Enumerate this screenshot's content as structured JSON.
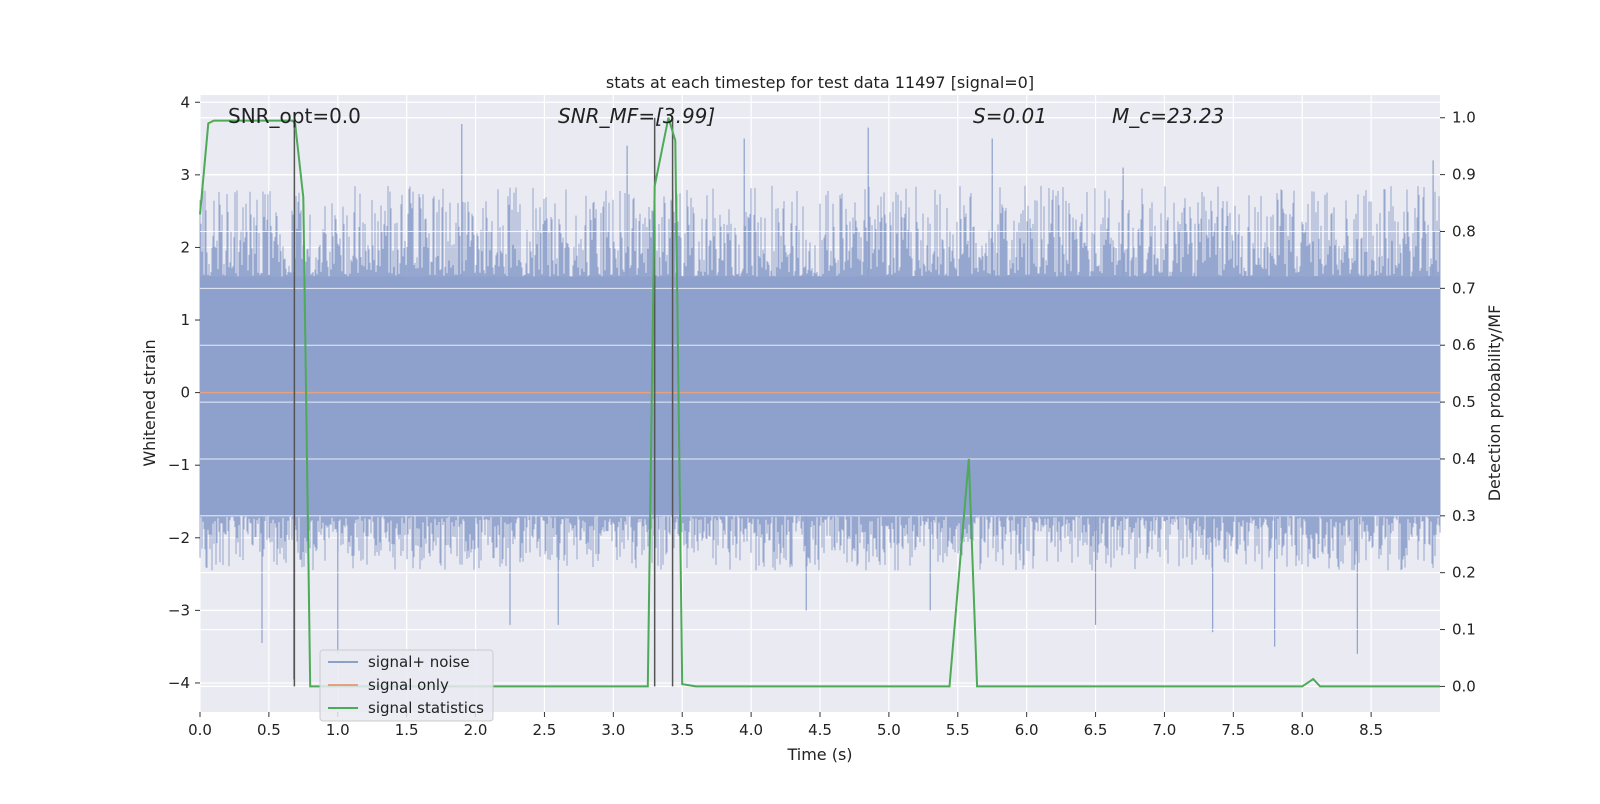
{
  "chart_data": {
    "type": "line",
    "title": "stats at each timestep for test data 11497 [signal=0]",
    "xlabel": "Time (s)",
    "ylabel": "Whitened strain",
    "y2label": "Detection probability/MF",
    "xlim": [
      0.0,
      9.0
    ],
    "ylim": [
      -4.4,
      4.1
    ],
    "y2lim": [
      -0.045,
      1.04
    ],
    "xticks": [
      "0.0",
      "0.5",
      "1.0",
      "1.5",
      "2.0",
      "2.5",
      "3.0",
      "3.5",
      "4.0",
      "4.5",
      "5.0",
      "5.5",
      "6.0",
      "6.5",
      "7.0",
      "7.5",
      "8.0",
      "8.5"
    ],
    "xtick_values": [
      0.0,
      0.5,
      1.0,
      1.5,
      2.0,
      2.5,
      3.0,
      3.5,
      4.0,
      4.5,
      5.0,
      5.5,
      6.0,
      6.5,
      7.0,
      7.5,
      8.0,
      8.5
    ],
    "yticks": [
      "4",
      "3",
      "2",
      "1",
      "0",
      "−1",
      "−2",
      "−3",
      "−4"
    ],
    "ytick_values": [
      4,
      3,
      2,
      1,
      0,
      -1,
      -2,
      -3,
      -4
    ],
    "y2ticks": [
      "1.0",
      "0.9",
      "0.8",
      "0.7",
      "0.6",
      "0.5",
      "0.4",
      "0.3",
      "0.2",
      "0.1",
      "0.0"
    ],
    "y2tick_values": [
      1.0,
      0.9,
      0.8,
      0.7,
      0.6,
      0.5,
      0.4,
      0.3,
      0.2,
      0.1,
      0.0
    ],
    "grid": true,
    "legend_position": "lower-left",
    "annotations": [
      {
        "text": "SNR_opt=0.0"
      },
      {
        "text": "SNR_MF=[3.99]"
      },
      {
        "text": "S=0.01"
      },
      {
        "text": "M_c=23.23"
      }
    ],
    "series": [
      {
        "name": "signal+ noise",
        "color": "#8da0cb",
        "kind": "noise",
        "x_range": [
          0.0,
          9.0
        ],
        "core_band": [
          -1.7,
          1.6
        ],
        "envelope_typical": [
          -2.3,
          2.6
        ],
        "spikes": [
          {
            "x": 0.45,
            "y": -3.45
          },
          {
            "x": 0.68,
            "y": -3.95
          },
          {
            "x": 1.0,
            "y": -3.6
          },
          {
            "x": 1.9,
            "y": 3.7
          },
          {
            "x": 2.25,
            "y": -3.2
          },
          {
            "x": 2.6,
            "y": -3.2
          },
          {
            "x": 3.95,
            "y": 3.5
          },
          {
            "x": 4.4,
            "y": -3.0
          },
          {
            "x": 4.85,
            "y": 3.65
          },
          {
            "x": 5.3,
            "y": -3.0
          },
          {
            "x": 6.5,
            "y": -3.2
          },
          {
            "x": 7.35,
            "y": -3.3
          },
          {
            "x": 7.8,
            "y": -3.5
          },
          {
            "x": 8.4,
            "y": -3.6
          },
          {
            "x": 8.95,
            "y": 3.2
          },
          {
            "x": 5.75,
            "y": 3.5
          },
          {
            "x": 3.1,
            "y": 3.4
          },
          {
            "x": 6.7,
            "y": 3.1
          }
        ]
      },
      {
        "name": "signal only",
        "color": "#e5a07e",
        "axis": "left",
        "x": [
          0.0,
          9.0
        ],
        "y": [
          0.0,
          0.0
        ]
      },
      {
        "name": "signal statistics",
        "color": "#4daa57",
        "axis": "right",
        "x": [
          0.0,
          0.06,
          0.1,
          0.2,
          0.3,
          0.4,
          0.5,
          0.6,
          0.67,
          0.69,
          0.75,
          0.8,
          0.85,
          1.0,
          1.5,
          2.0,
          2.5,
          3.0,
          3.2,
          3.25,
          3.3,
          3.4,
          3.45,
          3.5,
          3.6,
          4.0,
          4.5,
          5.0,
          5.44,
          5.58,
          5.64,
          6.0,
          6.5,
          7.0,
          7.5,
          8.0,
          8.08,
          8.13,
          8.5,
          9.0
        ],
        "y": [
          0.83,
          0.99,
          0.995,
          0.995,
          0.995,
          0.995,
          0.995,
          0.995,
          0.995,
          0.99,
          0.86,
          0.0,
          0.0,
          0.0,
          0.0,
          0.0,
          0.0,
          0.0,
          0.0,
          0.0,
          0.88,
          1.0,
          0.96,
          0.004,
          0.0,
          0.0,
          0.0,
          0.0,
          0.0,
          0.4,
          0.0,
          0.0,
          0.0,
          0.0,
          0.0,
          0.0,
          0.013,
          0.0,
          0.0,
          0.0
        ]
      }
    ],
    "vlines": [
      {
        "x": 0.685,
        "y2": [
          0.0,
          0.995
        ],
        "color": "#555555"
      },
      {
        "x": 3.3,
        "y2": [
          0.0,
          1.0
        ],
        "color": "#555555"
      },
      {
        "x": 3.43,
        "y2": [
          0.0,
          1.0
        ],
        "color": "#555555"
      }
    ]
  }
}
